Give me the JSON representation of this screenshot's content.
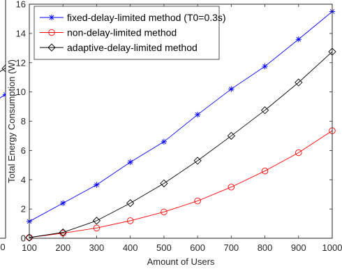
{
  "chart_data": {
    "type": "line",
    "xlabel": "Amount of Users",
    "ylabel": "Total Energy Consumption (W)",
    "xlim": [
      100,
      1000
    ],
    "ylim": [
      0,
      16
    ],
    "xticks": [
      100,
      200,
      300,
      400,
      500,
      600,
      700,
      800,
      900,
      1000
    ],
    "yticks": [
      0,
      2,
      4,
      6,
      8,
      10,
      12,
      14,
      16
    ],
    "grid": false,
    "legend": "top-left",
    "x": [
      100,
      200,
      300,
      400,
      500,
      600,
      700,
      800,
      900,
      1000
    ],
    "series": [
      {
        "name": "fixed-delay-limited method (T0=0.3s)",
        "color": "#0000ff",
        "marker": "asterisk",
        "values": [
          1.15,
          2.4,
          3.65,
          5.2,
          6.6,
          8.45,
          10.2,
          11.75,
          13.6,
          15.5
        ]
      },
      {
        "name": "non-delay-limited method",
        "color": "#ff0000",
        "marker": "circle",
        "values": [
          0.05,
          0.35,
          0.7,
          1.2,
          1.8,
          2.55,
          3.5,
          4.6,
          5.85,
          7.35
        ]
      },
      {
        "name": "adaptive-delay-limited method",
        "color": "#000000",
        "marker": "diamond",
        "values": [
          0.05,
          0.4,
          1.2,
          2.4,
          3.75,
          5.3,
          7.0,
          8.75,
          10.65,
          12.75
        ]
      }
    ],
    "cropped_left": {
      "tick_label": "0",
      "series": [
        {
          "color": "#0000ff",
          "marker": "asterisk",
          "points": [
            [
              0.0,
              8.2
            ]
          ]
        },
        {
          "color": "#ff0000",
          "marker": "circle",
          "points": [
            [
              0.0,
              15.4
            ]
          ]
        },
        {
          "color": "#000000",
          "marker": "diamond",
          "points": [
            [
              0.0,
              9.7
            ]
          ]
        }
      ]
    }
  }
}
